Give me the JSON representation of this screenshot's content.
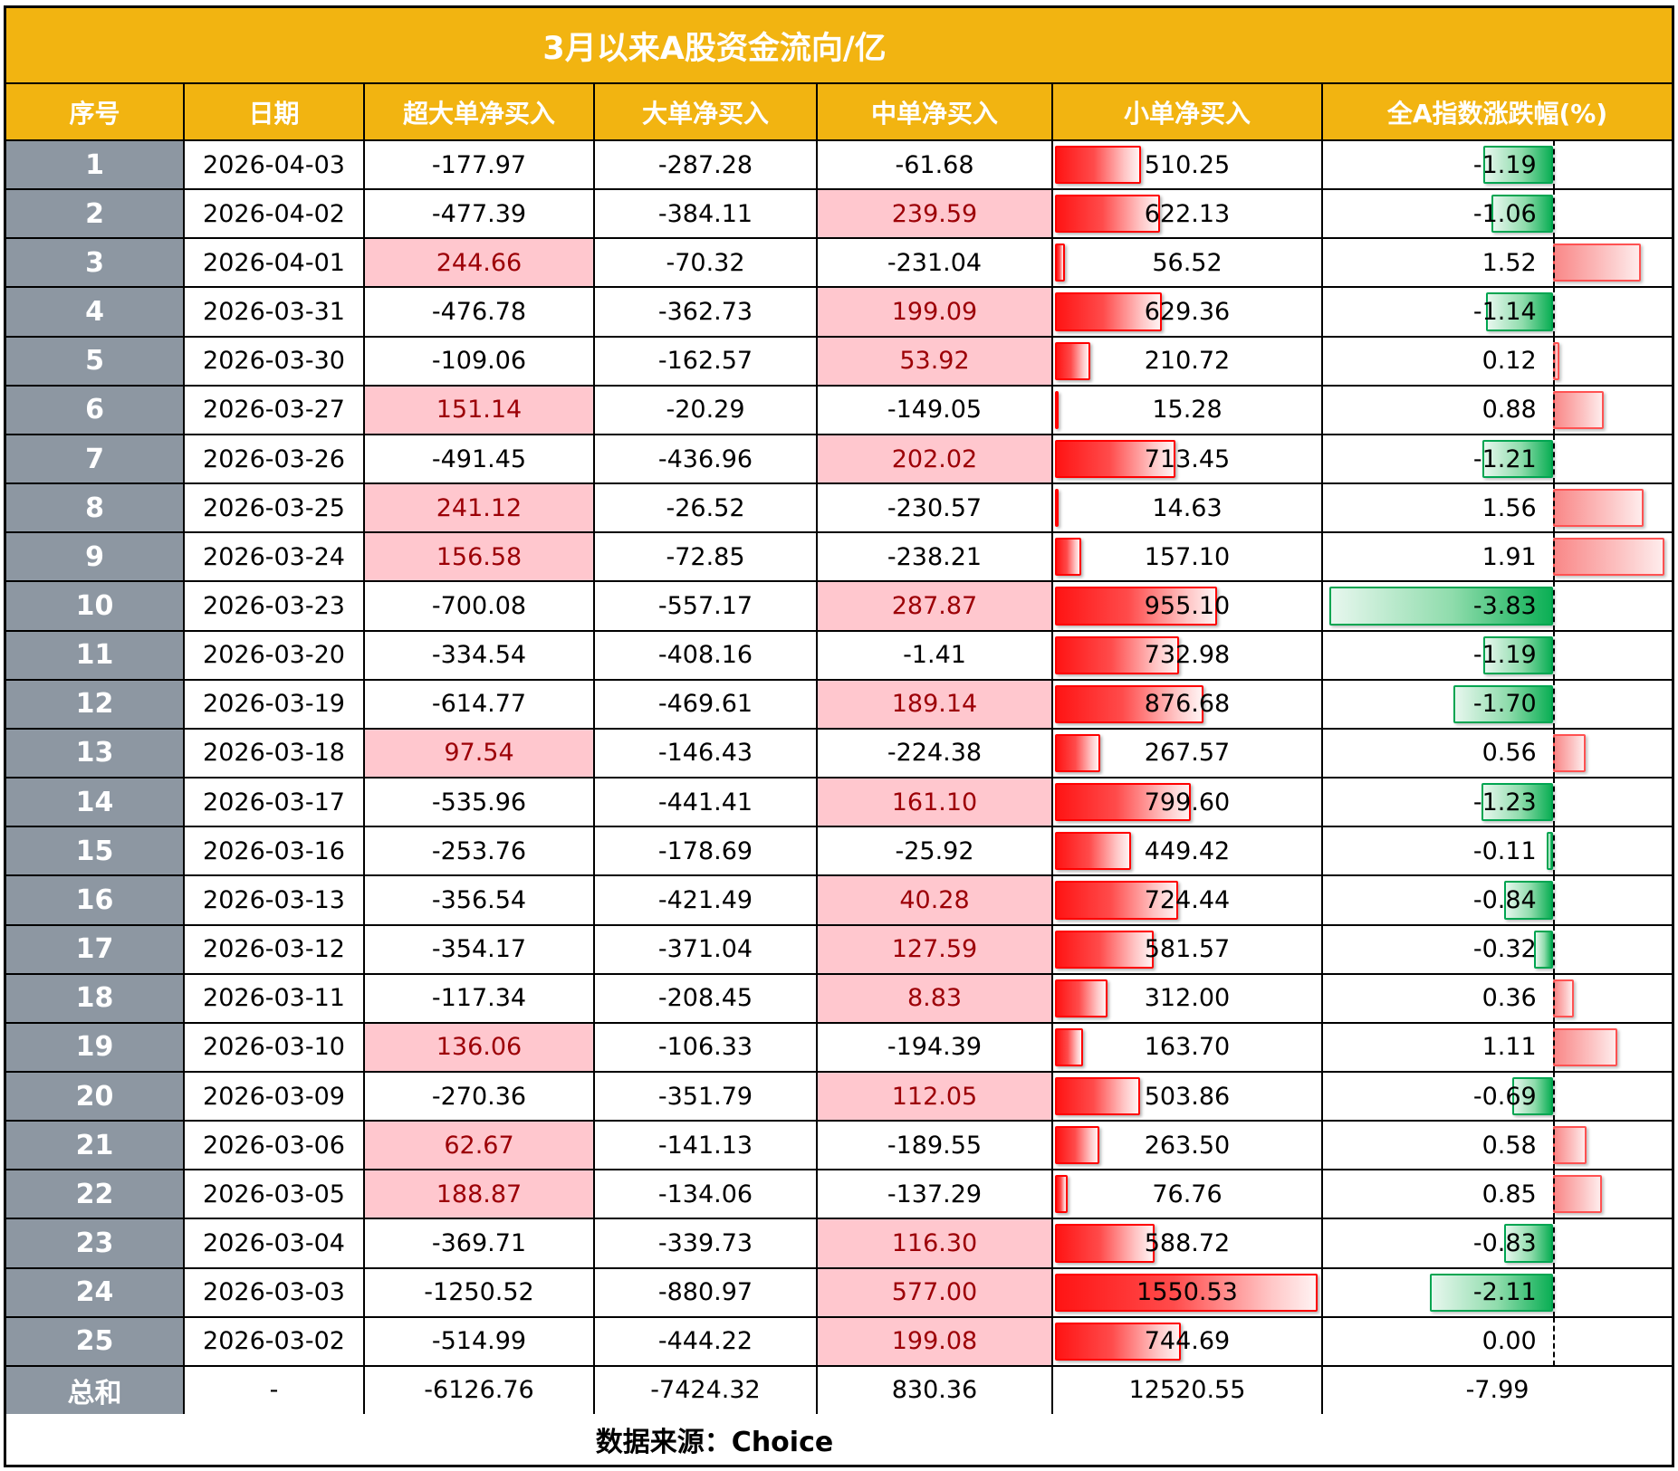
{
  "colors": {
    "gold": "#F2B411",
    "index_gray": "#8D97A2",
    "pink_bg": "#FFC7CE",
    "pink_text": "#9C0006",
    "red": "#FF0000",
    "green": "#00A551",
    "pos_red": "#FF5252"
  },
  "chart_data": {
    "type": "table",
    "title": "3月以来A股资金流向/亿",
    "source_note": "数据来源：Choice",
    "columns": [
      "序号",
      "日期",
      "超大单净买入",
      "大单净买入",
      "中单净买入",
      "小单净买入",
      "全A指数涨跌幅(%)"
    ],
    "conditional_format_note": "positive values in 超大单/大单/中单 columns get pink fill with dark red text; 小单 column has red data bars from cell left; 全A指数涨跌幅 column has data bars on a dashed zero-axis: green bars extend left for negative, red bars extend right for positive",
    "rows": [
      {
        "no": "1",
        "date": "2026-04-03",
        "xl": "-177.97",
        "l": "-287.28",
        "m": "-61.68",
        "s": "510.25",
        "chg": "-1.19"
      },
      {
        "no": "2",
        "date": "2026-04-02",
        "xl": "-477.39",
        "l": "-384.11",
        "m": "239.59",
        "s": "622.13",
        "chg": "-1.06"
      },
      {
        "no": "3",
        "date": "2026-04-01",
        "xl": "244.66",
        "l": "-70.32",
        "m": "-231.04",
        "s": "56.52",
        "chg": "1.52"
      },
      {
        "no": "4",
        "date": "2026-03-31",
        "xl": "-476.78",
        "l": "-362.73",
        "m": "199.09",
        "s": "629.36",
        "chg": "-1.14"
      },
      {
        "no": "5",
        "date": "2026-03-30",
        "xl": "-109.06",
        "l": "-162.57",
        "m": "53.92",
        "s": "210.72",
        "chg": "0.12"
      },
      {
        "no": "6",
        "date": "2026-03-27",
        "xl": "151.14",
        "l": "-20.29",
        "m": "-149.05",
        "s": "15.28",
        "chg": "0.88"
      },
      {
        "no": "7",
        "date": "2026-03-26",
        "xl": "-491.45",
        "l": "-436.96",
        "m": "202.02",
        "s": "713.45",
        "chg": "-1.21"
      },
      {
        "no": "8",
        "date": "2026-03-25",
        "xl": "241.12",
        "l": "-26.52",
        "m": "-230.57",
        "s": "14.63",
        "chg": "1.56"
      },
      {
        "no": "9",
        "date": "2026-03-24",
        "xl": "156.58",
        "l": "-72.85",
        "m": "-238.21",
        "s": "157.10",
        "chg": "1.91"
      },
      {
        "no": "10",
        "date": "2026-03-23",
        "xl": "-700.08",
        "l": "-557.17",
        "m": "287.87",
        "s": "955.10",
        "chg": "-3.83"
      },
      {
        "no": "11",
        "date": "2026-03-20",
        "xl": "-334.54",
        "l": "-408.16",
        "m": "-1.41",
        "s": "732.98",
        "chg": "-1.19"
      },
      {
        "no": "12",
        "date": "2026-03-19",
        "xl": "-614.77",
        "l": "-469.61",
        "m": "189.14",
        "s": "876.68",
        "chg": "-1.70"
      },
      {
        "no": "13",
        "date": "2026-03-18",
        "xl": "97.54",
        "l": "-146.43",
        "m": "-224.38",
        "s": "267.57",
        "chg": "0.56"
      },
      {
        "no": "14",
        "date": "2026-03-17",
        "xl": "-535.96",
        "l": "-441.41",
        "m": "161.10",
        "s": "799.60",
        "chg": "-1.23"
      },
      {
        "no": "15",
        "date": "2026-03-16",
        "xl": "-253.76",
        "l": "-178.69",
        "m": "-25.92",
        "s": "449.42",
        "chg": "-0.11"
      },
      {
        "no": "16",
        "date": "2026-03-13",
        "xl": "-356.54",
        "l": "-421.49",
        "m": "40.28",
        "s": "724.44",
        "chg": "-0.84"
      },
      {
        "no": "17",
        "date": "2026-03-12",
        "xl": "-354.17",
        "l": "-371.04",
        "m": "127.59",
        "s": "581.57",
        "chg": "-0.32"
      },
      {
        "no": "18",
        "date": "2026-03-11",
        "xl": "-117.34",
        "l": "-208.45",
        "m": "8.83",
        "s": "312.00",
        "chg": "0.36"
      },
      {
        "no": "19",
        "date": "2026-03-10",
        "xl": "136.06",
        "l": "-106.33",
        "m": "-194.39",
        "s": "163.70",
        "chg": "1.11"
      },
      {
        "no": "20",
        "date": "2026-03-09",
        "xl": "-270.36",
        "l": "-351.79",
        "m": "112.05",
        "s": "503.86",
        "chg": "-0.69"
      },
      {
        "no": "21",
        "date": "2026-03-06",
        "xl": "62.67",
        "l": "-141.13",
        "m": "-189.55",
        "s": "263.50",
        "chg": "0.58"
      },
      {
        "no": "22",
        "date": "2026-03-05",
        "xl": "188.87",
        "l": "-134.06",
        "m": "-137.29",
        "s": "76.76",
        "chg": "0.85"
      },
      {
        "no": "23",
        "date": "2026-03-04",
        "xl": "-369.71",
        "l": "-339.73",
        "m": "116.30",
        "s": "588.72",
        "chg": "-0.83"
      },
      {
        "no": "24",
        "date": "2026-03-03",
        "xl": "-1250.52",
        "l": "-880.97",
        "m": "577.00",
        "s": "1550.53",
        "chg": "-2.11"
      },
      {
        "no": "25",
        "date": "2026-03-02",
        "xl": "-514.99",
        "l": "-444.22",
        "m": "199.08",
        "s": "744.69",
        "chg": "0.00"
      }
    ],
    "total_row": {
      "no": "总和",
      "date": "-",
      "xl": "-6126.76",
      "l": "-7424.32",
      "m": "830.36",
      "s": "12520.55",
      "chg": "-7.99"
    }
  }
}
